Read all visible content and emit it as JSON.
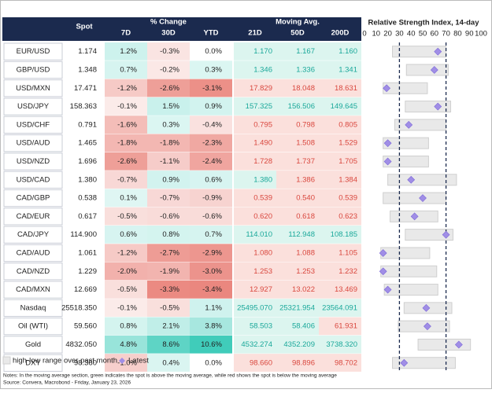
{
  "header": {
    "spot": "Spot",
    "change": "% Change",
    "change_cols": [
      "7D",
      "30D",
      "YTD"
    ],
    "ma": "Moving Avg.",
    "ma_cols": [
      "21D",
      "50D",
      "200D"
    ],
    "rsi": "Relative Strength Index, 14-day"
  },
  "rsi_axis": {
    "lim": [
      0,
      100
    ],
    "ticks": [
      0,
      10,
      20,
      30,
      40,
      50,
      60,
      70,
      80,
      90,
      100
    ],
    "dashed": [
      30,
      70
    ]
  },
  "rows": [
    {
      "name": "EUR/USD",
      "spot": "1.174",
      "change": [
        "1.2%",
        "-0.3%",
        "0.0%"
      ],
      "ma": [
        "1.170",
        "1.167",
        "1.160"
      ],
      "rsi_range": [
        24,
        70
      ],
      "rsi_latest": 63
    },
    {
      "name": "GBP/USD",
      "spot": "1.348",
      "change": [
        "0.7%",
        "-0.2%",
        "0.3%"
      ],
      "ma": [
        "1.346",
        "1.336",
        "1.341"
      ],
      "rsi_range": [
        36,
        72
      ],
      "rsi_latest": 60
    },
    {
      "name": "USD/MXN",
      "spot": "17.471",
      "change": [
        "-1.2%",
        "-2.6%",
        "-3.1%"
      ],
      "ma": [
        "17.829",
        "18.048",
        "18.631"
      ],
      "rsi_range": [
        16,
        54
      ],
      "rsi_latest": 19
    },
    {
      "name": "USD/JPY",
      "spot": "158.363",
      "change": [
        "-0.1%",
        "1.5%",
        "0.9%"
      ],
      "ma": [
        "157.325",
        "156.506",
        "149.645"
      ],
      "rsi_range": [
        35,
        74
      ],
      "rsi_latest": 63
    },
    {
      "name": "USD/CHF",
      "spot": "0.791",
      "change": [
        "-1.6%",
        "0.3%",
        "-0.4%"
      ],
      "ma": [
        "0.795",
        "0.798",
        "0.805"
      ],
      "rsi_range": [
        26,
        70
      ],
      "rsi_latest": 38
    },
    {
      "name": "USD/AUD",
      "spot": "1.465",
      "change": [
        "-1.8%",
        "-1.8%",
        "-2.3%"
      ],
      "ma": [
        "1.490",
        "1.508",
        "1.529"
      ],
      "rsi_range": [
        16,
        55
      ],
      "rsi_latest": 20
    },
    {
      "name": "USD/NZD",
      "spot": "1.696",
      "change": [
        "-2.6%",
        "-1.1%",
        "-2.4%"
      ],
      "ma": [
        "1.728",
        "1.737",
        "1.705"
      ],
      "rsi_range": [
        16,
        55
      ],
      "rsi_latest": 20
    },
    {
      "name": "USD/CAD",
      "spot": "1.380",
      "change": [
        "-0.7%",
        "0.9%",
        "0.6%"
      ],
      "ma": [
        "1.380",
        "1.386",
        "1.384"
      ],
      "rsi_range": [
        20,
        79
      ],
      "rsi_latest": 40
    },
    {
      "name": "CAD/GBP",
      "spot": "0.538",
      "change": [
        "0.1%",
        "-0.7%",
        "-0.9%"
      ],
      "ma": [
        "0.539",
        "0.540",
        "0.539"
      ],
      "rsi_range": [
        16,
        70
      ],
      "rsi_latest": 50
    },
    {
      "name": "CAD/EUR",
      "spot": "0.617",
      "change": [
        "-0.5%",
        "-0.6%",
        "-0.6%"
      ],
      "ma": [
        "0.620",
        "0.618",
        "0.623"
      ],
      "rsi_range": [
        22,
        63
      ],
      "rsi_latest": 43
    },
    {
      "name": "CAD/JPY",
      "spot": "114.900",
      "change": [
        "0.6%",
        "0.8%",
        "0.7%"
      ],
      "ma": [
        "114.010",
        "112.948",
        "108.185"
      ],
      "rsi_range": [
        35,
        76
      ],
      "rsi_latest": 70
    },
    {
      "name": "CAD/AUD",
      "spot": "1.061",
      "change": [
        "-1.2%",
        "-2.7%",
        "-2.9%"
      ],
      "ma": [
        "1.080",
        "1.088",
        "1.105"
      ],
      "rsi_range": [
        14,
        56
      ],
      "rsi_latest": 16
    },
    {
      "name": "CAD/NZD",
      "spot": "1.229",
      "change": [
        "-2.0%",
        "-1.9%",
        "-3.0%"
      ],
      "ma": [
        "1.253",
        "1.253",
        "1.232"
      ],
      "rsi_range": [
        14,
        62
      ],
      "rsi_latest": 16
    },
    {
      "name": "CAD/MXN",
      "spot": "12.669",
      "change": [
        "-0.5%",
        "-3.3%",
        "-3.4%"
      ],
      "ma": [
        "12.927",
        "13.022",
        "13.469"
      ],
      "rsi_range": [
        17,
        63
      ],
      "rsi_latest": 20
    },
    {
      "name": "Nasdaq",
      "spot": "25518.350",
      "change": [
        "-0.1%",
        "-0.5%",
        "1.1%"
      ],
      "ma": [
        "25495.070",
        "25321.954",
        "23564.091"
      ],
      "rsi_range": [
        34,
        75
      ],
      "rsi_latest": 53
    },
    {
      "name": "Oil (WTI)",
      "spot": "59.560",
      "change": [
        "0.8%",
        "2.1%",
        "3.8%"
      ],
      "ma": [
        "58.503",
        "58.406",
        "61.931"
      ],
      "rsi_range": [
        29,
        73
      ],
      "rsi_latest": 54
    },
    {
      "name": "Gold",
      "spot": "4832.050",
      "change": [
        "4.8%",
        "8.6%",
        "10.6%"
      ],
      "ma": [
        "4532.274",
        "4352.209",
        "3738.320"
      ],
      "rsi_range": [
        46,
        91
      ],
      "rsi_latest": 81
    },
    {
      "name": "DXY",
      "spot": "98.360",
      "change": [
        "-1.0%",
        "0.4%",
        "0.0%"
      ],
      "ma": [
        "98.660",
        "98.896",
        "98.702"
      ],
      "rsi_range": [
        24,
        78
      ],
      "rsi_latest": 34
    }
  ],
  "legend": {
    "range": "high-low range over past month",
    "latest": "Latest"
  },
  "notes": "Notes: In the moving average section, green indicates the spot is above the moving average, while red shows the spot is below the moving average",
  "source": "Source: Convera, Macrobond - Friday, January 23, 2026"
}
